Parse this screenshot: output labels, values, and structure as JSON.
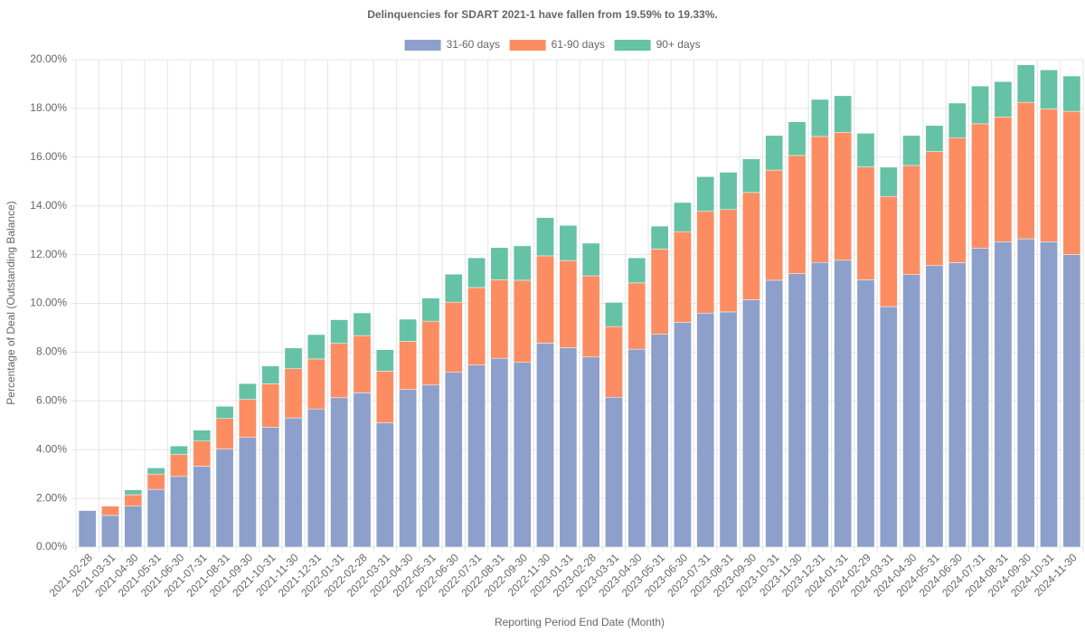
{
  "chart_data": {
    "type": "stacked_bar",
    "title": "Delinquencies for SDART 2021-1 have fallen from 19.59% to 19.33%.",
    "x_label": "Reporting Period End Date (Month)",
    "y_label": "Percentage of Deal (Outstanding Balance)",
    "categories": [
      "2021-02-28",
      "2021-03-31",
      "2021-04-30",
      "2021-05-31",
      "2021-06-30",
      "2021-07-31",
      "2021-08-31",
      "2021-09-30",
      "2021-10-31",
      "2021-11-30",
      "2021-12-31",
      "2022-01-31",
      "2022-02-28",
      "2022-03-31",
      "2022-04-30",
      "2022-05-31",
      "2022-06-30",
      "2022-07-31",
      "2022-08-31",
      "2022-09-30",
      "2022-11-30",
      "2023-01-31",
      "2023-02-28",
      "2023-03-31",
      "2023-04-30",
      "2023-05-31",
      "2023-06-30",
      "2023-07-31",
      "2023-08-31",
      "2023-09-30",
      "2023-10-31",
      "2023-11-30",
      "2023-12-31",
      "2024-01-31",
      "2024-02-29",
      "2024-03-31",
      "2024-04-30",
      "2024-05-31",
      "2024-06-30",
      "2024-07-31",
      "2024-08-31",
      "2024-09-30",
      "2024-10-31",
      "2024-11-30"
    ],
    "series": [
      {
        "name": "31-60 days",
        "color": "#8da0cb",
        "values": [
          1.5,
          1.3,
          1.68,
          2.37,
          2.9,
          3.32,
          4.02,
          4.5,
          4.92,
          5.3,
          5.67,
          6.13,
          6.33,
          5.1,
          6.47,
          6.65,
          7.17,
          7.47,
          7.75,
          7.58,
          8.37,
          8.18,
          7.8,
          6.15,
          8.12,
          8.73,
          9.22,
          9.6,
          9.65,
          10.15,
          10.95,
          11.22,
          11.68,
          11.77,
          10.97,
          9.87,
          11.18,
          11.55,
          11.67,
          12.27,
          12.53,
          12.65,
          12.53,
          12.0
        ]
      },
      {
        "name": "61-90 days",
        "color": "#fc8d62",
        "values": [
          0,
          0.38,
          0.47,
          0.63,
          0.9,
          1.03,
          1.26,
          1.56,
          1.78,
          2.02,
          2.05,
          2.23,
          2.35,
          2.12,
          1.97,
          2.62,
          2.88,
          3.18,
          3.22,
          3.37,
          3.58,
          3.58,
          3.33,
          2.9,
          2.72,
          3.5,
          3.72,
          4.18,
          4.2,
          4.4,
          4.52,
          4.85,
          5.17,
          5.25,
          4.63,
          4.52,
          4.48,
          4.68,
          5.13,
          5.1,
          5.12,
          5.6,
          5.45,
          5.88
        ]
      },
      {
        "name": "90+ days",
        "color": "#66c2a5",
        "values": [
          0,
          0,
          0.2,
          0.25,
          0.35,
          0.45,
          0.5,
          0.65,
          0.73,
          0.85,
          1.0,
          0.97,
          0.93,
          0.88,
          0.91,
          0.95,
          1.15,
          1.22,
          1.32,
          1.41,
          1.57,
          1.44,
          1.34,
          0.99,
          1.03,
          0.94,
          1.2,
          1.42,
          1.53,
          1.38,
          1.42,
          1.38,
          1.52,
          1.5,
          1.38,
          1.2,
          1.23,
          1.07,
          1.42,
          1.55,
          1.45,
          1.54,
          1.6,
          1.45
        ]
      }
    ],
    "ylim": [
      0,
      20
    ],
    "yticks": [
      {
        "value": 0,
        "label": "0.00%"
      },
      {
        "value": 2,
        "label": "2.00%"
      },
      {
        "value": 4,
        "label": "4.00%"
      },
      {
        "value": 6,
        "label": "6.00%"
      },
      {
        "value": 8,
        "label": "8.00%"
      },
      {
        "value": 10,
        "label": "10.00%"
      },
      {
        "value": 12,
        "label": "12.00%"
      },
      {
        "value": 14,
        "label": "14.00%"
      },
      {
        "value": 16,
        "label": "16.00%"
      },
      {
        "value": 18,
        "label": "18.00%"
      },
      {
        "value": 20,
        "label": "20.00%"
      }
    ],
    "grid": true,
    "legend": "top"
  }
}
